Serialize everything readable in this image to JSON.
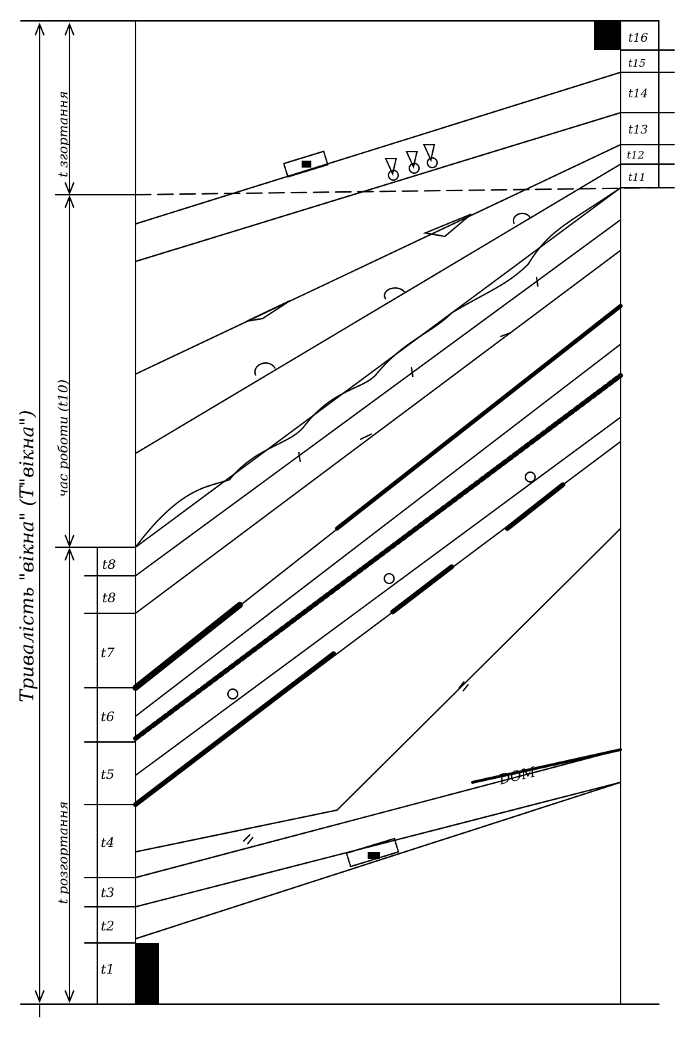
{
  "labels": {
    "total": "Тривалість \"вікна\" (Т\"вікна\")",
    "fold": "t згортання",
    "work": "час роботи (t10)",
    "unfold": "t розгортання",
    "dom": "DOM"
  },
  "left_intervals": [
    "t8",
    "t8",
    "t7",
    "t6",
    "t5",
    "t4",
    "t3",
    "t2",
    "t1"
  ],
  "right_intervals": [
    "t16",
    "t15",
    "t14",
    "t13",
    "t12",
    "t11"
  ]
}
